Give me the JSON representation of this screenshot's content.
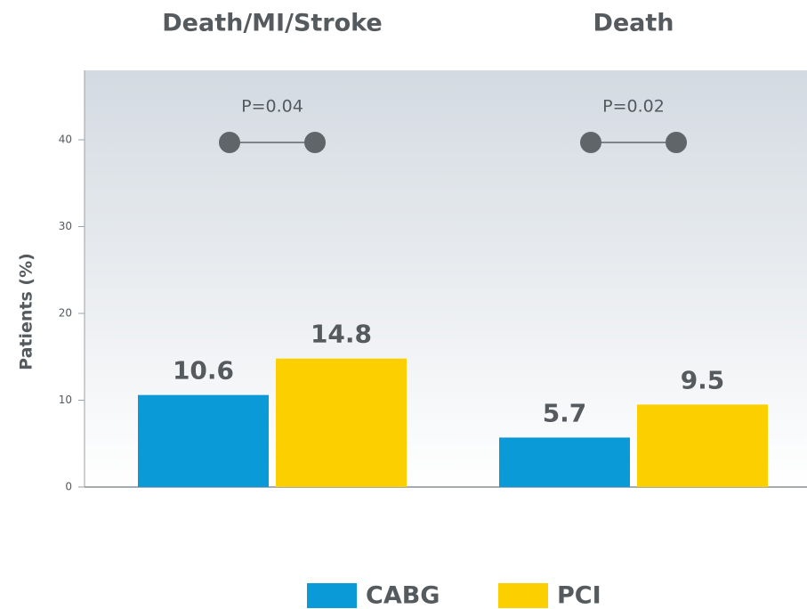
{
  "chart_data": {
    "type": "bar",
    "categories": [
      "Death/MI/Stroke",
      "Death"
    ],
    "series": [
      {
        "name": "CABG",
        "color": "#0a9ad8",
        "values": [
          10.6,
          5.7
        ]
      },
      {
        "name": "PCI",
        "color": "#fccf00",
        "values": [
          14.8,
          9.5
        ]
      }
    ],
    "annotations": [
      "P=0.04",
      "P=0.02"
    ],
    "y_label": "Patients (%)",
    "ylim": [
      0,
      48
    ],
    "yticks": [
      0,
      10,
      20,
      30,
      40
    ]
  }
}
